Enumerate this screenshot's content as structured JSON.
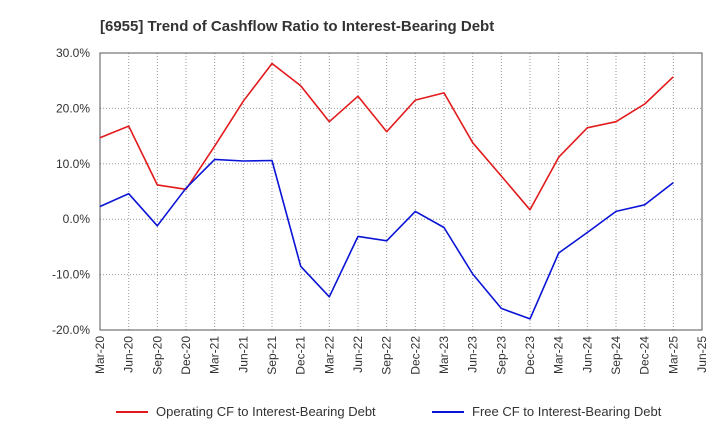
{
  "chart_data": {
    "type": "line",
    "title": "[6955]  Trend of Cashflow Ratio to Interest-Bearing Debt",
    "xlabel": "",
    "ylabel": "",
    "categories": [
      "Mar-20",
      "Jun-20",
      "Sep-20",
      "Dec-20",
      "Mar-21",
      "Jun-21",
      "Sep-21",
      "Dec-21",
      "Mar-22",
      "Jun-22",
      "Sep-22",
      "Dec-22",
      "Mar-23",
      "Jun-23",
      "Sep-23",
      "Dec-23",
      "Mar-24",
      "Jun-24",
      "Sep-24",
      "Dec-24",
      "Mar-25",
      "Jun-25"
    ],
    "ylim": [
      -20,
      30
    ],
    "yticks": [
      -20,
      -10,
      0,
      10,
      20,
      30
    ],
    "ytick_labels": [
      "-20.0%",
      "-10.0%",
      "0.0%",
      "10.0%",
      "20.0%",
      "30.0%"
    ],
    "grid": true,
    "legend_position": "bottom",
    "series": [
      {
        "name": "Operating CF to Interest-Bearing Debt",
        "color": "#e31a1c",
        "values": [
          14.7,
          16.8,
          6.2,
          5.4,
          13.2,
          21.3,
          28.1,
          24.1,
          17.6,
          22.2,
          15.8,
          21.5,
          22.8,
          13.8,
          7.8,
          1.7,
          11.2,
          16.5,
          17.6,
          20.8,
          25.7,
          null
        ]
      },
      {
        "name": "Free CF to Interest-Bearing Debt",
        "color": "#0a14d6",
        "values": [
          2.3,
          4.6,
          -1.2,
          5.6,
          10.8,
          10.5,
          10.6,
          -8.5,
          -14.0,
          -3.1,
          -3.9,
          1.4,
          -1.5,
          -9.9,
          -16.1,
          -18.0,
          -6.1,
          -2.4,
          1.4,
          2.6,
          6.6,
          null
        ]
      }
    ]
  }
}
